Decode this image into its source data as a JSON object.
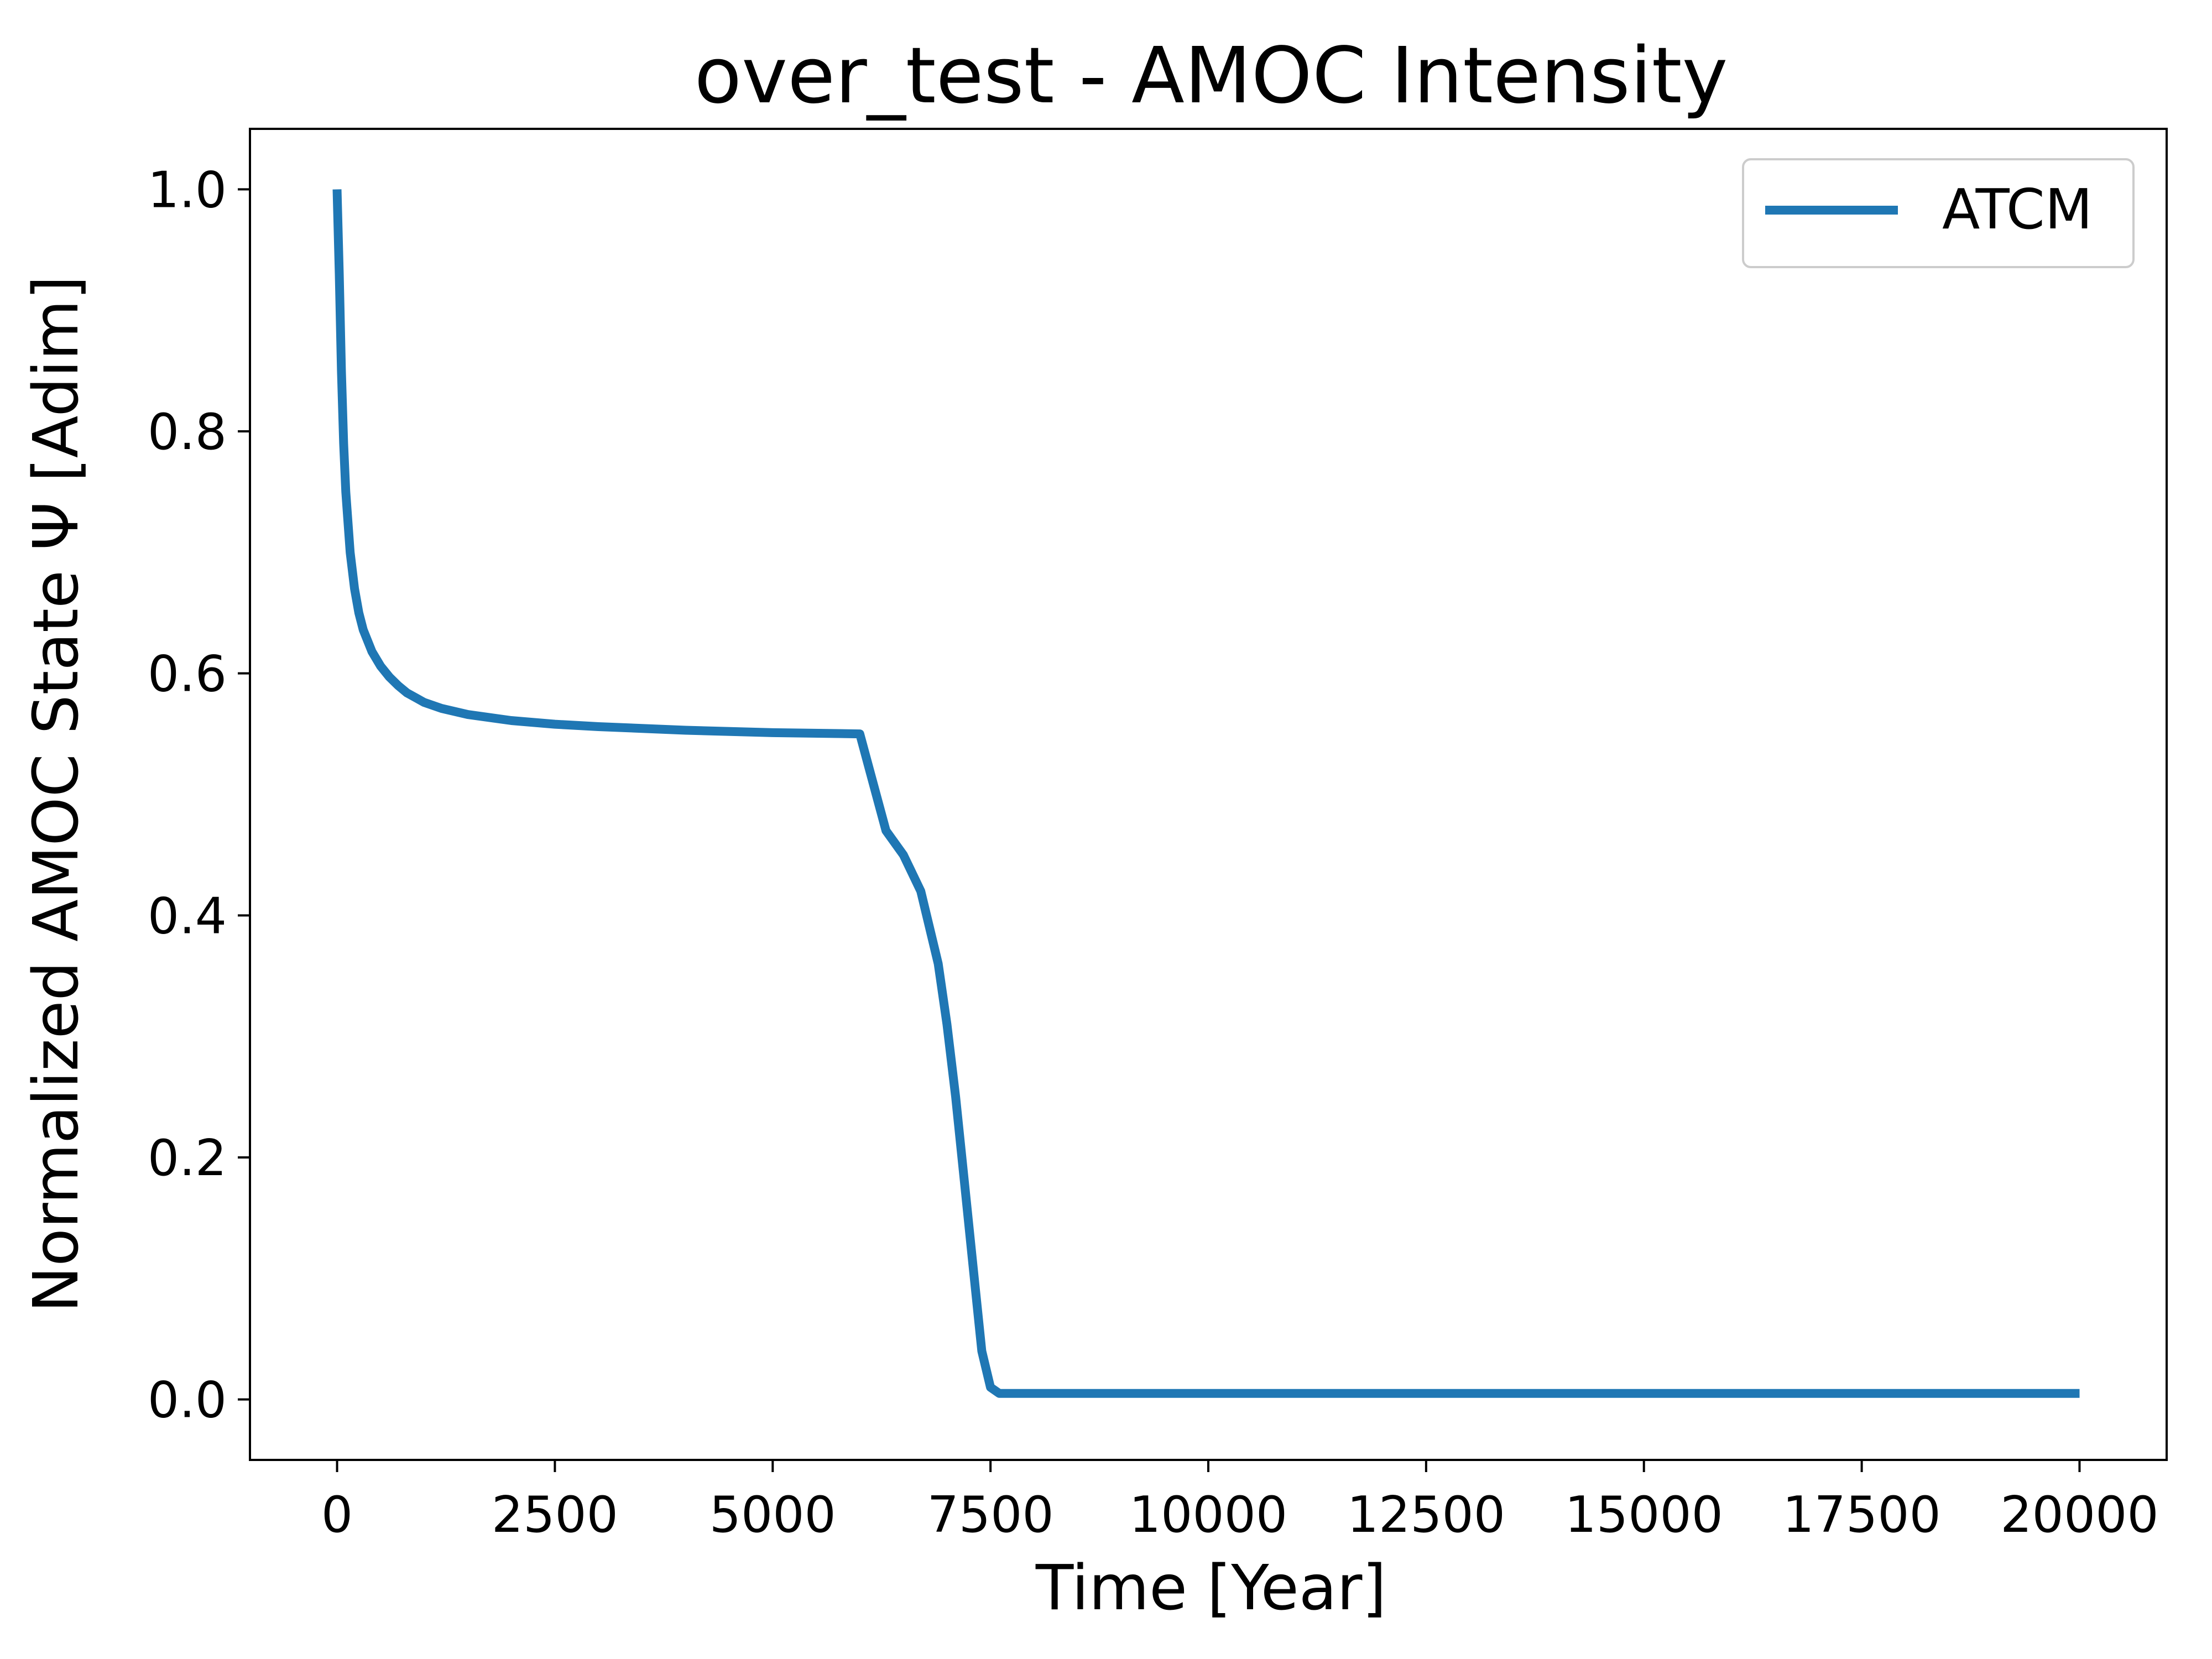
{
  "chart_data": {
    "type": "line",
    "title": "over_test - AMOC Intensity",
    "xlabel": "Time [Year]",
    "ylabel": "Normalized AMOC State Ψ [Adim]",
    "xlim": [
      -1000,
      21000
    ],
    "ylim": [
      -0.05,
      1.05
    ],
    "xticks": [
      0,
      2500,
      5000,
      7500,
      10000,
      12500,
      15000,
      17500,
      20000
    ],
    "xtick_labels": [
      "0",
      "2500",
      "5000",
      "7500",
      "10000",
      "12500",
      "15000",
      "17500",
      "20000"
    ],
    "yticks": [
      0.0,
      0.2,
      0.4,
      0.6,
      0.8,
      1.0
    ],
    "ytick_labels": [
      "0.0",
      "0.2",
      "0.4",
      "0.6",
      "0.8",
      "1.0"
    ],
    "grid": false,
    "legend_position": "top-right",
    "series": [
      {
        "name": "ATCM",
        "color": "#1f77b4",
        "x": [
          0,
          25,
          50,
          75,
          100,
          150,
          200,
          250,
          300,
          400,
          500,
          600,
          700,
          800,
          1000,
          1200,
          1500,
          2000,
          2500,
          3000,
          4000,
          5000,
          6000,
          6300,
          6500,
          6700,
          6900,
          7000,
          7100,
          7200,
          7300,
          7400,
          7500,
          7600,
          7650,
          8000,
          10000,
          15000,
          20000
        ],
        "y": [
          1.0,
          0.93,
          0.85,
          0.79,
          0.75,
          0.7,
          0.67,
          0.65,
          0.636,
          0.618,
          0.606,
          0.597,
          0.59,
          0.584,
          0.576,
          0.571,
          0.566,
          0.561,
          0.558,
          0.556,
          0.553,
          0.551,
          0.55,
          0.47,
          0.45,
          0.42,
          0.36,
          0.31,
          0.25,
          0.18,
          0.11,
          0.04,
          0.01,
          0.005,
          0.005,
          0.005,
          0.005,
          0.005,
          0.005
        ]
      }
    ]
  }
}
